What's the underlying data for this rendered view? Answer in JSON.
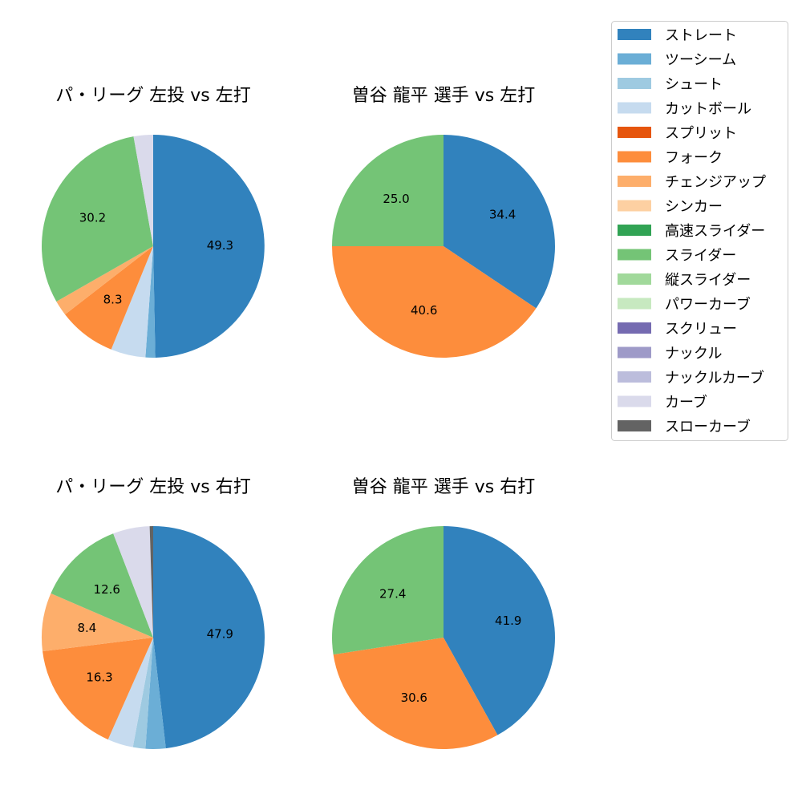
{
  "legend": {
    "placement": "right",
    "items": [
      {
        "name": "ストレート",
        "color": "#3182bd"
      },
      {
        "name": "ツーシーム",
        "color": "#6baed6"
      },
      {
        "name": "シュート",
        "color": "#9ecae1"
      },
      {
        "name": "カットボール",
        "color": "#c6dbef"
      },
      {
        "name": "スプリット",
        "color": "#e6550d"
      },
      {
        "name": "フォーク",
        "color": "#fd8d3c"
      },
      {
        "name": "チェンジアップ",
        "color": "#fdae6b"
      },
      {
        "name": "シンカー",
        "color": "#fdd0a2"
      },
      {
        "name": "高速スライダー",
        "color": "#31a354"
      },
      {
        "name": "スライダー",
        "color": "#74c476"
      },
      {
        "name": "縦スライダー",
        "color": "#a1d99b"
      },
      {
        "name": "パワーカーブ",
        "color": "#c7e9c0"
      },
      {
        "name": "スクリュー",
        "color": "#756bb1"
      },
      {
        "name": "ナックル",
        "color": "#9e9ac8"
      },
      {
        "name": "ナックルカーブ",
        "color": "#bcbddc"
      },
      {
        "name": "カーブ",
        "color": "#dadaeb"
      },
      {
        "name": "スローカーブ",
        "color": "#636363"
      }
    ]
  },
  "chart_data": [
    {
      "type": "pie",
      "title": "パ・リーグ 左投 vs 左打",
      "slices": [
        {
          "category": "ストレート",
          "value": 49.3,
          "label": "49.3"
        },
        {
          "category": "ツーシーム",
          "value": 1.4,
          "label": ""
        },
        {
          "category": "カットボール",
          "value": 5.0,
          "label": ""
        },
        {
          "category": "フォーク",
          "value": 8.3,
          "label": "8.3"
        },
        {
          "category": "チェンジアップ",
          "value": 2.2,
          "label": ""
        },
        {
          "category": "スライダー",
          "value": 30.2,
          "label": "30.2"
        },
        {
          "category": "カーブ",
          "value": 2.8,
          "label": ""
        }
      ]
    },
    {
      "type": "pie",
      "title": "曽谷 龍平 選手 vs 左打",
      "slices": [
        {
          "category": "ストレート",
          "value": 34.4,
          "label": "34.4"
        },
        {
          "category": "フォーク",
          "value": 40.6,
          "label": "40.6"
        },
        {
          "category": "スライダー",
          "value": 25.0,
          "label": "25.0"
        }
      ]
    },
    {
      "type": "pie",
      "title": "パ・リーグ 左投 vs 右打",
      "slices": [
        {
          "category": "ストレート",
          "value": 47.9,
          "label": "47.9"
        },
        {
          "category": "ツーシーム",
          "value": 2.9,
          "label": ""
        },
        {
          "category": "シュート",
          "value": 1.8,
          "label": ""
        },
        {
          "category": "カットボール",
          "value": 3.7,
          "label": ""
        },
        {
          "category": "フォーク",
          "value": 16.3,
          "label": "16.3"
        },
        {
          "category": "チェンジアップ",
          "value": 8.4,
          "label": "8.4"
        },
        {
          "category": "スライダー",
          "value": 12.6,
          "label": "12.6"
        },
        {
          "category": "カーブ",
          "value": 5.3,
          "label": ""
        },
        {
          "category": "スローカーブ",
          "value": 0.5,
          "label": ""
        }
      ]
    },
    {
      "type": "pie",
      "title": "曽谷 龍平 選手 vs 右打",
      "slices": [
        {
          "category": "ストレート",
          "value": 41.9,
          "label": "41.9"
        },
        {
          "category": "フォーク",
          "value": 30.6,
          "label": "30.6"
        },
        {
          "category": "スライダー",
          "value": 27.4,
          "label": "27.4"
        }
      ]
    }
  ]
}
